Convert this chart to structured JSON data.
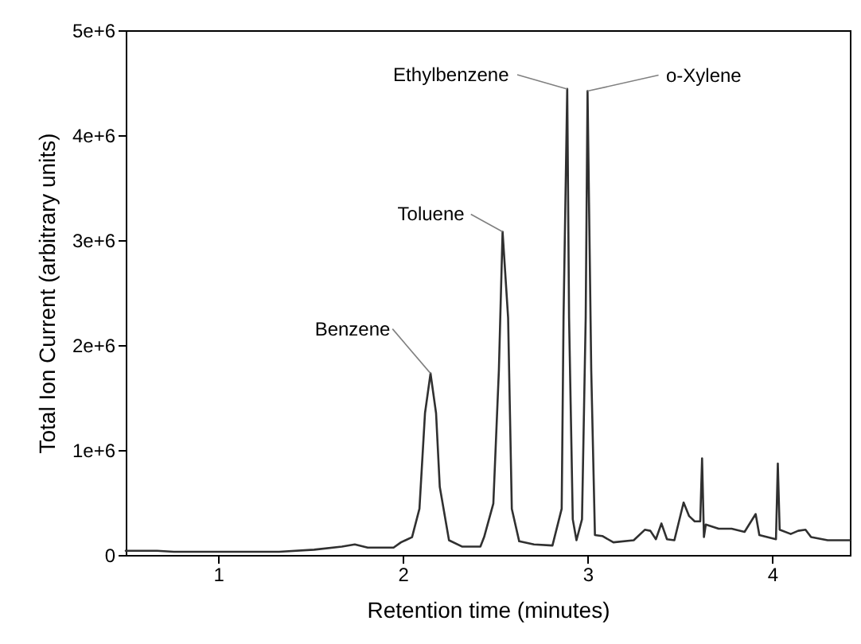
{
  "chart_data": {
    "type": "line",
    "xlabel": "Retention time (minutes)",
    "ylabel": "Total Ion Current (arbitrary units)",
    "xlim": [
      0.5,
      4.42
    ],
    "xticks": [
      1,
      2,
      3,
      4
    ],
    "ylim": [
      0,
      5000000
    ],
    "yticks": [
      0,
      {
        "value": 1000000,
        "label": "1e+6"
      },
      {
        "value": 2000000,
        "label": "2e+6"
      },
      {
        "value": 3000000,
        "label": "3e+6"
      },
      {
        "value": 4000000,
        "label": "4e+6"
      },
      {
        "value": 5000000,
        "label": "5e+6"
      }
    ],
    "grid": false,
    "series": [
      {
        "color": "#303030",
        "x": [
          0.5,
          0.67,
          0.76,
          1.33,
          1.52,
          1.67,
          1.74,
          1.81,
          1.95,
          1.99,
          2.05,
          2.09,
          2.12,
          2.15,
          2.18,
          2.2,
          2.25,
          2.32,
          2.42,
          2.44,
          2.49,
          2.52,
          2.54,
          2.57,
          2.59,
          2.63,
          2.71,
          2.81,
          2.86,
          2.87,
          2.89,
          2.9,
          2.92,
          2.94,
          2.97,
          2.99,
          3.0,
          3.02,
          3.04,
          3.08,
          3.14,
          3.25,
          3.31,
          3.34,
          3.37,
          3.4,
          3.43,
          3.47,
          3.52,
          3.55,
          3.58,
          3.61,
          3.62,
          3.63,
          3.64,
          3.71,
          3.78,
          3.85,
          3.91,
          3.93,
          4.02,
          4.03,
          4.04,
          4.1,
          4.14,
          4.18,
          4.21,
          4.3,
          4.42
        ],
        "values": [
          40000,
          40000,
          30000,
          30000,
          50000,
          80000,
          100000,
          70000,
          70000,
          120000,
          170000,
          440000,
          1350000,
          1730000,
          1350000,
          650000,
          140000,
          80000,
          80000,
          170000,
          490000,
          1760000,
          3080000,
          2260000,
          440000,
          130000,
          100000,
          90000,
          440000,
          2260000,
          4440000,
          2260000,
          340000,
          140000,
          340000,
          2260000,
          4420000,
          1760000,
          190000,
          180000,
          120000,
          140000,
          240000,
          230000,
          150000,
          300000,
          150000,
          140000,
          500000,
          370000,
          320000,
          320000,
          920000,
          170000,
          290000,
          250000,
          250000,
          220000,
          390000,
          190000,
          150000,
          870000,
          240000,
          200000,
          230000,
          240000,
          170000,
          140000,
          140000
        ]
      }
    ],
    "annotations": [
      {
        "text": "Benzene",
        "x": 2.15,
        "y": 1730000
      },
      {
        "text": "Toluene",
        "x": 2.54,
        "y": 3080000
      },
      {
        "text": "Ethylbenzene",
        "x": 2.89,
        "y": 4440000
      },
      {
        "text": "o-Xylene",
        "x": 3.0,
        "y": 4420000
      }
    ]
  }
}
